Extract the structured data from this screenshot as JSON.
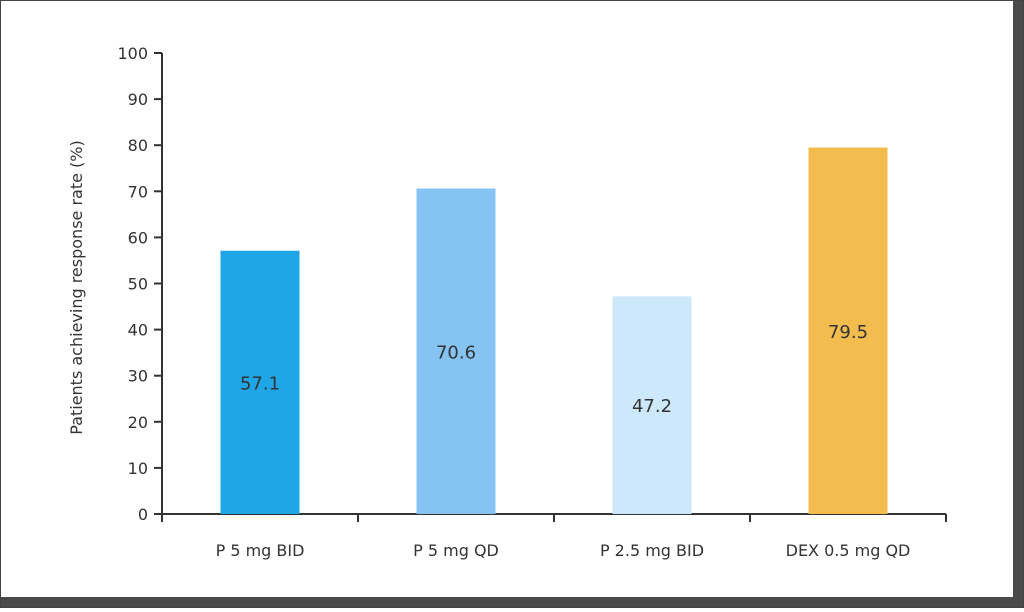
{
  "chart_data": {
    "type": "bar",
    "categories": [
      "P 5 mg BID",
      "P 5 mg QD",
      "P 2.5 mg BID",
      "DEX 0.5 mg QD"
    ],
    "values": [
      57.1,
      70.6,
      47.2,
      79.5
    ],
    "data_labels": [
      "57.1",
      "70.6",
      "47.2",
      "79.5"
    ],
    "colors": [
      "#1fa6e6",
      "#85c3f2",
      "#cde7fb",
      "#f2bc4e"
    ],
    "title": "",
    "xlabel": "",
    "ylabel": "Patients achieving response rate (%)",
    "ylim": [
      0,
      100
    ],
    "yticks": [
      0,
      10,
      20,
      30,
      40,
      50,
      60,
      70,
      80,
      90,
      100
    ],
    "grid": false,
    "legend": "none"
  }
}
